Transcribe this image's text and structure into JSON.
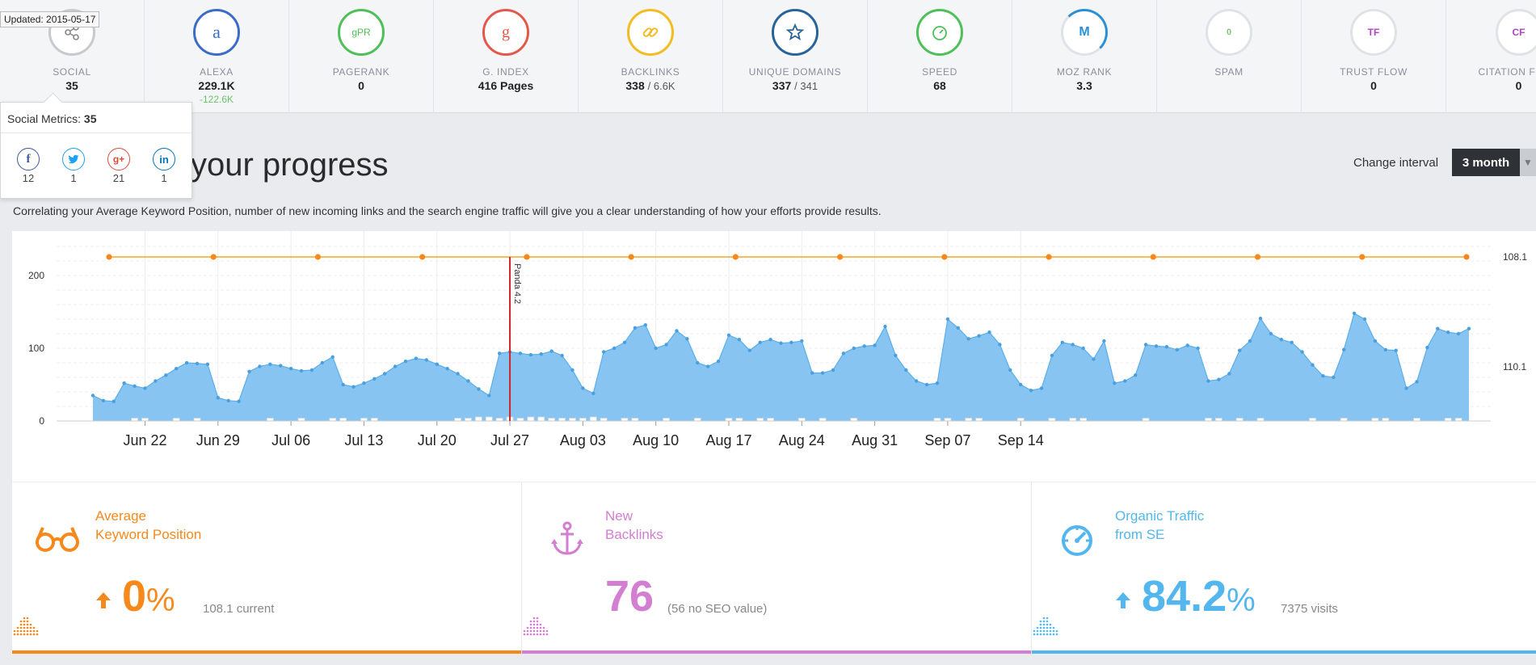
{
  "updated_tip": "Updated: 2015-05-17",
  "metrics": [
    {
      "label": "SOCIAL",
      "value": "35",
      "sub": "",
      "delta": "",
      "icon": "share-icon",
      "color": "#9aa0a6"
    },
    {
      "label": "ALEXA",
      "value": "229.1K",
      "sub": "",
      "delta": "-122.6K",
      "icon": "alexa-icon",
      "glyph": "a",
      "color": "#3b6cc7"
    },
    {
      "label": "PAGERANK",
      "value": "0",
      "sub": "",
      "delta": "",
      "icon": "pagerank-icon",
      "glyph": "gPR",
      "color": "#4fbf5a"
    },
    {
      "label": "G. INDEX",
      "value": "416 Pages",
      "sub": "",
      "delta": "",
      "icon": "google-icon",
      "glyph": "g",
      "color": "#e4574b"
    },
    {
      "label": "BACKLINKS",
      "value": "338",
      "sub": "/ 6.6K",
      "delta": "",
      "icon": "link-icon",
      "color": "#f2bd22"
    },
    {
      "label": "UNIQUE DOMAINS",
      "value": "337",
      "sub": "/ 341",
      "delta": "",
      "icon": "star-icon",
      "color": "#2a6496"
    },
    {
      "label": "SPEED",
      "value": "68",
      "sub": "",
      "delta": "",
      "icon": "speedometer-icon",
      "color": "#4fbf5a"
    },
    {
      "label": "MOZ RANK",
      "value": "3.3",
      "sub": "",
      "delta": "",
      "icon": "moz-icon",
      "glyph": "M",
      "color": "#2b8fd6"
    },
    {
      "label": "SPAM",
      "value": "",
      "sub": "",
      "delta": "",
      "icon": "spam-icon",
      "glyph": "0",
      "color": "#7cc576"
    },
    {
      "label": "TRUST FLOW",
      "value": "0",
      "sub": "",
      "delta": "",
      "icon": "trust-flow-icon",
      "glyph": "TF",
      "color": "#b044c4"
    },
    {
      "label": "CITATION FLOW",
      "value": "0",
      "sub": "",
      "delta": "",
      "icon": "citation-flow-icon",
      "glyph": "CF",
      "color": "#b044c4"
    }
  ],
  "social_popup": {
    "label": "Social Metrics:",
    "value": "35",
    "networks": [
      {
        "name": "facebook-icon",
        "glyph": "f",
        "count": "12",
        "color": "#3b5998"
      },
      {
        "name": "twitter-icon",
        "glyph": "t",
        "count": "1",
        "color": "#1da1f2"
      },
      {
        "name": "google-plus-icon",
        "glyph": "g+",
        "count": "21",
        "color": "#dd4b39"
      },
      {
        "name": "linkedin-icon",
        "glyph": "in",
        "count": "1",
        "color": "#0077b5"
      }
    ]
  },
  "heading": "your progress",
  "subtext": "Correlating your Average Keyword Position, number of new incoming links and the search engine traffic will give you a clear understanding of how your efforts provide results.",
  "interval": {
    "label": "Change interval",
    "value": "3 month"
  },
  "chart_data": {
    "type": "area",
    "x_tick_labels": [
      "Jun 22",
      "Jun 29",
      "Jul 06",
      "Jul 13",
      "Jul 20",
      "Jul 27",
      "Aug 03",
      "Aug 10",
      "Aug 17",
      "Aug 24",
      "Aug 31",
      "Sep 07",
      "Sep 14"
    ],
    "y_left_ticks": [
      "200",
      "100",
      "0"
    ],
    "y_left_range": [
      0,
      250
    ],
    "y_right_ticks": [
      "108.1",
      "110.1"
    ],
    "annotation": {
      "label": "Panda 4.2",
      "day_index": 40
    },
    "traffic": [
      35,
      28,
      27,
      52,
      48,
      45,
      55,
      63,
      72,
      80,
      79,
      78,
      32,
      28,
      27,
      68,
      75,
      78,
      76,
      72,
      69,
      70,
      80,
      88,
      50,
      47,
      52,
      58,
      65,
      75,
      82,
      86,
      84,
      78,
      72,
      65,
      55,
      44,
      35,
      93,
      95,
      93,
      91,
      92,
      96,
      90,
      70,
      45,
      38,
      95,
      100,
      108,
      128,
      132,
      100,
      105,
      124,
      113,
      80,
      75,
      82,
      118,
      112,
      97,
      108,
      112,
      107,
      108,
      110,
      66,
      66,
      70,
      93,
      100,
      103,
      104,
      130,
      90,
      70,
      55,
      50,
      52,
      140,
      128,
      113,
      117,
      122,
      105,
      70,
      50,
      42,
      45,
      90,
      108,
      105,
      100,
      85,
      110,
      52,
      55,
      63,
      105,
      103,
      102,
      98,
      104,
      100,
      55,
      57,
      65,
      97,
      110,
      141,
      120,
      112,
      108,
      95,
      77,
      62,
      60,
      98,
      148,
      140,
      110,
      98,
      97,
      45,
      54,
      101,
      127,
      122,
      120,
      127
    ],
    "backlinks": [
      0,
      0,
      0,
      0,
      1,
      1,
      0,
      0,
      1,
      0,
      1,
      0,
      0,
      0,
      0,
      0,
      0,
      1,
      0,
      0,
      1,
      0,
      0,
      1,
      1,
      0,
      1,
      1,
      0,
      0,
      0,
      0,
      0,
      0,
      0,
      1,
      1,
      2,
      2,
      1,
      2,
      1,
      2,
      2,
      1,
      1,
      1,
      1,
      2,
      1,
      0,
      1,
      1,
      0,
      0,
      1,
      0,
      0,
      1,
      0,
      0,
      1,
      1,
      0,
      1,
      1,
      0,
      0,
      1,
      0,
      1,
      0,
      0,
      1,
      0,
      0,
      0,
      0,
      0,
      0,
      0,
      1,
      1,
      0,
      1,
      1,
      0,
      0,
      0,
      1,
      0,
      0,
      1,
      0,
      1,
      1,
      0,
      0,
      0,
      0,
      0,
      1,
      0,
      0,
      0,
      0,
      0,
      1,
      1,
      0,
      1,
      0,
      1,
      0,
      0,
      0,
      0,
      1,
      0,
      0,
      1,
      0,
      0,
      1,
      1,
      0,
      0,
      1,
      0,
      0,
      1,
      1,
      0
    ],
    "keyword_position_points": 14
  },
  "cards": [
    {
      "title_1": "Average",
      "title_2": "Keyword Position",
      "value": "0",
      "unit": "%",
      "note": "108.1 current",
      "color": "#f7891c",
      "icon": "glasses-icon",
      "trend": "up"
    },
    {
      "title_1": "New",
      "title_2": "Backlinks",
      "value": "76",
      "unit": "",
      "note": "(56 no SEO value)",
      "color": "#d37ed1",
      "icon": "anchor-icon",
      "trend": ""
    },
    {
      "title_1": "Organic Traffic",
      "title_2": "from SE",
      "value": "84.2",
      "unit": "%",
      "note": "7375 visits",
      "color": "#54b6ee",
      "icon": "speedometer-icon",
      "trend": "up"
    }
  ]
}
